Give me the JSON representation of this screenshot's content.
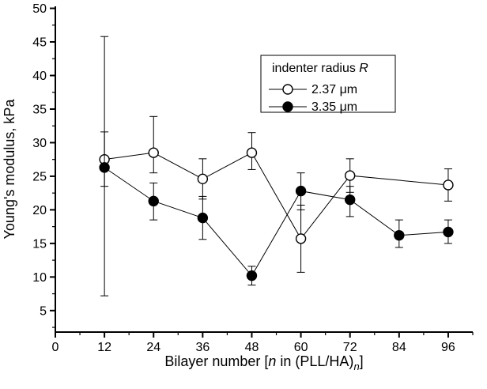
{
  "chart_data": {
    "type": "line",
    "title": "",
    "xlabel": "Bilayer number [n in (PLL/HA)n]",
    "xlabel_parts": [
      {
        "text": "Bilayer number [",
        "style": "normal"
      },
      {
        "text": "n",
        "style": "italic"
      },
      {
        "text": " in (PLL/HA)",
        "style": "normal"
      },
      {
        "text": "n",
        "style": "italic-sub"
      },
      {
        "text": "]",
        "style": "normal"
      }
    ],
    "ylabel": "Young's modulus, kPa",
    "xlim": [
      0,
      102
    ],
    "ylim": [
      1.8,
      50.3
    ],
    "xticks": [
      0,
      12,
      24,
      36,
      48,
      60,
      72,
      84,
      96
    ],
    "xminor": [
      6,
      18,
      30,
      42,
      54,
      66,
      78,
      90,
      102
    ],
    "yticks": [
      5,
      10,
      15,
      20,
      25,
      30,
      35,
      40,
      45,
      50
    ],
    "yminor": [
      2.5,
      7.5,
      12.5,
      17.5,
      22.5,
      27.5,
      32.5,
      37.5,
      42.5,
      47.5
    ],
    "grid": false,
    "legend": {
      "position": "top-right",
      "title": "indenter radius R",
      "title_parts": [
        {
          "text": "indenter radius ",
          "style": "normal"
        },
        {
          "text": "R",
          "style": "italic"
        }
      ]
    },
    "series": [
      {
        "name": "2.37 μm",
        "marker": "open-circle",
        "color": "#000000",
        "x": [
          12,
          24,
          36,
          48,
          60,
          72,
          96
        ],
        "y": [
          27.5,
          28.5,
          24.6,
          28.5,
          15.7,
          25.1,
          23.7
        ],
        "err_minus": [
          20.3,
          3.0,
          3.0,
          2.5,
          5.0,
          2.5,
          2.4
        ],
        "err_plus": [
          18.3,
          5.4,
          3.0,
          3.0,
          5.0,
          2.5,
          2.4
        ]
      },
      {
        "name": "3.35 μm",
        "marker": "filled-circle",
        "color": "#000000",
        "x": [
          12,
          24,
          36,
          48,
          60,
          72,
          84,
          96
        ],
        "y": [
          26.3,
          21.3,
          18.8,
          10.2,
          22.8,
          21.5,
          16.2,
          16.7
        ],
        "err_minus": [
          2.8,
          2.8,
          3.2,
          1.4,
          2.8,
          2.5,
          1.8,
          1.7
        ],
        "err_plus": [
          5.3,
          2.7,
          3.2,
          1.4,
          2.7,
          2.0,
          2.3,
          1.8
        ]
      }
    ]
  }
}
